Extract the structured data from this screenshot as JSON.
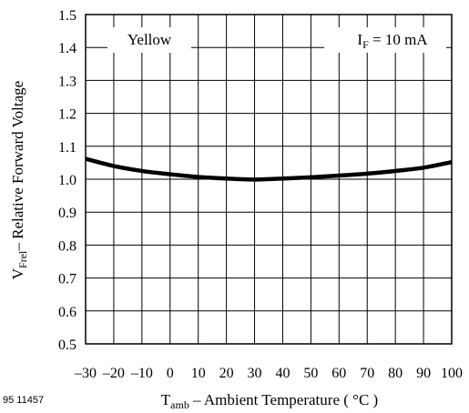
{
  "figure_code": "95 11457",
  "chart_data": {
    "type": "line",
    "xlabel": {
      "main": "T",
      "sub": "amb",
      "rest": " – Ambient Temperature ( °C )"
    },
    "ylabel": {
      "main": "V",
      "sub": "Frel",
      "rest": "– Relative Forward Voltage"
    },
    "xlim": [
      -30,
      100
    ],
    "ylim": [
      0.5,
      1.5
    ],
    "x_ticks": [
      -30,
      -20,
      -10,
      0,
      10,
      20,
      30,
      40,
      50,
      60,
      70,
      80,
      90,
      100
    ],
    "x_tick_labels": [
      "–30",
      "–20",
      "–10",
      "0",
      "10",
      "20",
      "30",
      "40",
      "50",
      "60",
      "70",
      "80",
      "90",
      "100"
    ],
    "y_ticks": [
      0.5,
      0.6,
      0.7,
      0.8,
      0.9,
      1.0,
      1.1,
      1.2,
      1.3,
      1.4,
      1.5
    ],
    "y_tick_labels": [
      "0.5",
      "0.6",
      "0.7",
      "0.8",
      "0.9",
      "1.0",
      "1.1",
      "1.2",
      "1.3",
      "1.4",
      "1.5"
    ],
    "grid": true,
    "annotations": {
      "series_label": "Yellow",
      "condition": {
        "main": "I",
        "sub": "F",
        "rest": " = 10 mA"
      }
    },
    "series": [
      {
        "color": "#000000",
        "x": [
          -30,
          -20,
          -10,
          0,
          10,
          20,
          30,
          40,
          50,
          60,
          70,
          80,
          90,
          100
        ],
        "values": [
          1.062,
          1.04,
          1.025,
          1.015,
          1.007,
          1.002,
          0.999,
          1.002,
          1.006,
          1.011,
          1.017,
          1.025,
          1.035,
          1.052
        ]
      }
    ]
  }
}
